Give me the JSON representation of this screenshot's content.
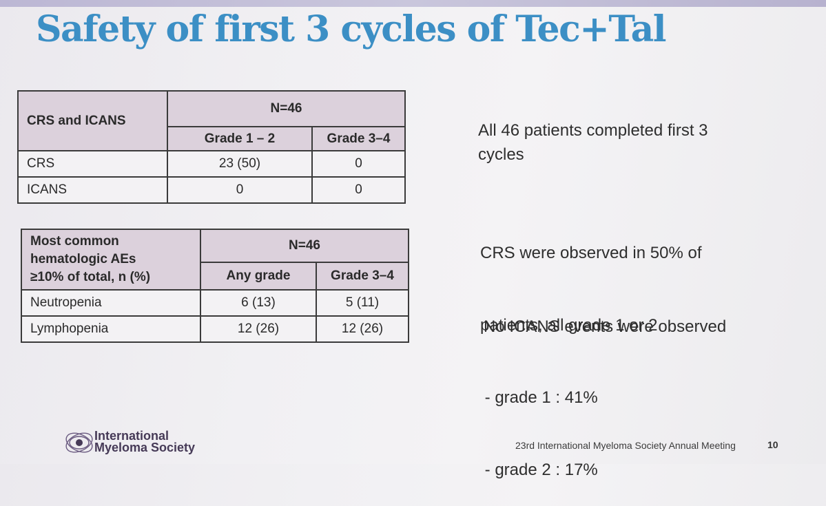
{
  "slide": {
    "title": "Safety of first 3 cycles of Tec+Tal"
  },
  "table1": {
    "corner": "CRS and ICANS",
    "group": "N=46",
    "cols": [
      "Grade 1 – 2",
      "Grade 3–4"
    ],
    "rows": [
      {
        "label": "CRS",
        "values": [
          "23 (50)",
          "0"
        ]
      },
      {
        "label": "ICANS",
        "values": [
          "0",
          "0"
        ]
      }
    ]
  },
  "table2": {
    "corner": [
      "Most common",
      "hematologic AEs",
      "≥10% of total, n (%)"
    ],
    "group": "N=46",
    "cols": [
      "Any grade",
      "Grade 3–4"
    ],
    "rows": [
      {
        "label": "Neutropenia",
        "values": [
          "6 (13)",
          "5 (11)"
        ]
      },
      {
        "label": "Lymphopenia",
        "values": [
          "12 (26)",
          "12 (26)"
        ]
      }
    ]
  },
  "notes": {
    "completed": [
      "All 46 patients completed first 3",
      "cycles"
    ],
    "crs": [
      "CRS were observed in 50% of",
      "patients, all grade 1 or 2",
      " - grade 1 : 41%",
      " - grade 2 : 17%"
    ],
    "icans": "No ICANS events were observed"
  },
  "footer": {
    "logo_line1": "International",
    "logo_line2": "Myeloma Society",
    "meeting": "23rd International Myeloma Society Annual Meeting",
    "page": "10"
  },
  "colors": {
    "title": "#3c8fc5",
    "header_fill": "#dcd1dc",
    "logo_purple": "#463a57"
  }
}
